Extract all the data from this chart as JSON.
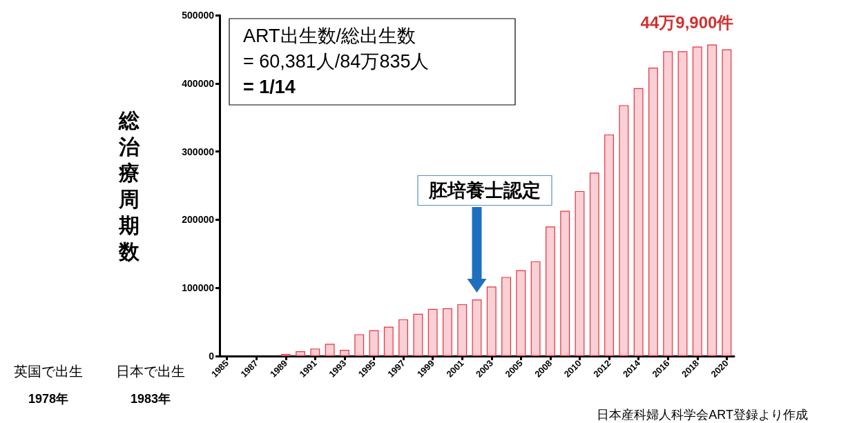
{
  "chart_data": {
    "type": "bar",
    "ylabel": "総治療周期数",
    "categories": [
      "1985",
      null,
      "1987",
      null,
      "1989",
      null,
      "1991",
      null,
      "1993",
      null,
      "1995",
      null,
      "1997",
      null,
      "1999",
      null,
      "2001",
      null,
      "2003",
      null,
      "2005",
      null,
      "2008",
      null,
      "2010",
      null,
      "2012",
      null,
      "2014",
      null,
      "2016",
      null,
      "2018",
      null,
      "2020"
    ],
    "values": [
      null,
      null,
      null,
      null,
      3000,
      7000,
      11000,
      18000,
      9000,
      32000,
      38000,
      43000,
      54000,
      62000,
      69000,
      70000,
      76000,
      83000,
      102000,
      116000,
      126000,
      139000,
      190000,
      213000,
      242000,
      269000,
      325000,
      368000,
      393000,
      423000,
      447000,
      447000,
      454000,
      457000,
      449900
    ],
    "color": "#f9d0d5",
    "ylim": [
      0,
      500000
    ],
    "yticks": [
      0,
      100000,
      200000,
      300000,
      400000,
      500000
    ],
    "grid": false,
    "annotations": [
      "ART出生数/総出生数\n= 60,381人/84万835人\n= 1/14",
      "胚培養士認定",
      {
        "text": "44万9,900件",
        "x": "2020",
        "y": 449900
      },
      "英国で出生",
      "1978年",
      "日本で出生",
      "1983年",
      "日本産科婦人科学会ART登録より作成"
    ]
  }
}
